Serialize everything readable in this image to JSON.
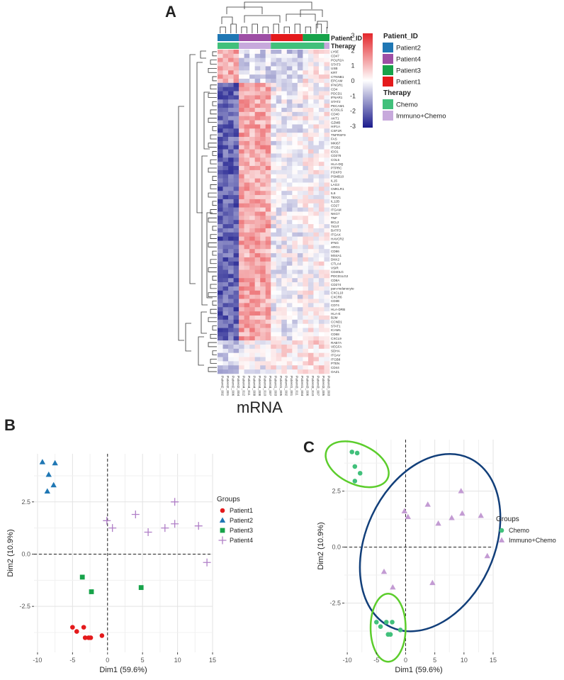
{
  "panels": {
    "a": "A",
    "b": "B",
    "c": "C"
  },
  "heatmap_caption": "mRNA",
  "heatmap_legend": {
    "scale_ticks": [
      "3",
      "2",
      "1",
      "0",
      "-1",
      "-2",
      "-3"
    ],
    "patient_title": "Patient_ID",
    "patients": [
      {
        "label": "Patient2",
        "color": "#1f77b4"
      },
      {
        "label": "Patient4",
        "color": "#9e4fa5"
      },
      {
        "label": "Patient3",
        "color": "#17a34a"
      },
      {
        "label": "Patient1",
        "color": "#e41a1c"
      }
    ],
    "therapy_title": "Therapy",
    "therapies": [
      {
        "label": "Chemo",
        "color": "#41c07b"
      },
      {
        "label": "Immuno+Chemo",
        "color": "#c7a9dc"
      }
    ]
  },
  "annotation_labels": {
    "patient": "Patient_ID",
    "therapy": "Therapy"
  },
  "chart_data": [
    {
      "type": "heatmap",
      "title": "",
      "colorscale": {
        "low": "#1a1a8c",
        "mid": "#ffffff",
        "high": "#e3262b",
        "range": [
          -3,
          3
        ]
      },
      "columns": [
        "Patient2_002",
        "Patient2_001",
        "Patient2_006",
        "Patient2_004",
        "Patient4_012",
        "Patient4_011",
        "Patient4_009",
        "Patient4_008",
        "Patient4_010",
        "Patient4_007",
        "Patient1_003",
        "Patient1_005",
        "Patient1_002",
        "Patient1_001",
        "Patient3_011",
        "Patient1_004",
        "Patient3_006",
        "Patient3_010",
        "Patient3_007",
        "Patient3_005",
        "Patient3_003"
      ],
      "column_patient_groups": [
        {
          "patient": "Patient2",
          "count": 4
        },
        {
          "patient": "Patient4",
          "count": 6
        },
        {
          "patient": "Patient1",
          "count": 6
        },
        {
          "patient": "Patient3",
          "count": 5
        }
      ],
      "column_therapy_groups": [
        {
          "therapy": "Chemo",
          "count": 4
        },
        {
          "therapy": "Immuno+Chemo",
          "count": 6
        },
        {
          "therapy": "Chemo",
          "count": 10
        },
        {
          "therapy": "Immuno+Chemo",
          "count": 1
        }
      ],
      "rows": [
        "LY6E",
        "CD47",
        "POLR2A",
        "STAT3",
        "USB",
        "KRT",
        "CTNNB1",
        "EPCAM",
        "IFNGR1",
        "CD4",
        "PDCD1",
        "IFNAR1",
        "STAT2",
        "PECAM1",
        "ICOSLG",
        "CD40",
        "AKT1",
        "GZMB",
        "HIF1A",
        "CSF1R",
        "TNFRSF9",
        "FAS",
        "MKI67",
        "ITGB2",
        "IDO1",
        "CD276",
        "COL5",
        "HLA-DQ",
        "PTPRC",
        "FOXP3",
        "PSMB10",
        "IL15",
        "LAG3",
        "CMKLR1",
        "IL6",
        "TBX21",
        "IL12B",
        "CD27",
        "ITGAM",
        "NKG7",
        "TNF",
        "BCL2",
        "TIGIT",
        "BATF3",
        "ITGAX",
        "HAVCR2",
        "IFNG",
        "ARG1",
        "CD86",
        "MS4A1",
        "DKK2",
        "CTLA4",
        "VSIR",
        "CD40LG",
        "PDCD1LG2",
        "CD8A",
        "CD274",
        "pan-melanocyte",
        "CXCL10",
        "CXCR6",
        "CD3E",
        "CD74",
        "HLA-DRB",
        "HLA-E",
        "B2M",
        "CCND1",
        "STAT1",
        "ICAM1",
        "CD68",
        "CXCL9",
        "RAB7A",
        "VEGFA",
        "SDHA",
        "ITGAV",
        "ITGB8",
        "PTEN",
        "CD44",
        "OAZ1"
      ]
    },
    {
      "type": "scatter",
      "title": "",
      "xlabel": "Dim1 (59.6%)",
      "ylabel": "Dim2 (10.9%)",
      "xlim": [
        -10.5,
        15
      ],
      "ylim": [
        -4.7,
        4.8
      ],
      "x_ticks": [
        -10,
        -5,
        0,
        5,
        10,
        15
      ],
      "y_ticks": [
        2.5,
        0.0,
        -2.5
      ],
      "y_tick_labels": [
        "2.5",
        "0.0",
        "-2.5"
      ],
      "grid": true,
      "legend_title": "Groups",
      "legend_position": "right",
      "series": [
        {
          "name": "Patient1",
          "marker": "circle",
          "color": "#e41a1c",
          "points": [
            [
              -5.0,
              -3.5
            ],
            [
              -4.4,
              -3.7
            ],
            [
              -3.4,
              -3.5
            ],
            [
              -3.2,
              -4.0
            ],
            [
              -2.7,
              -4.0
            ],
            [
              -2.4,
              -4.0
            ],
            [
              -0.8,
              -3.9
            ]
          ]
        },
        {
          "name": "Patient2",
          "marker": "triangle",
          "color": "#1f77b4",
          "points": [
            [
              -9.3,
              4.4
            ],
            [
              -7.5,
              4.35
            ],
            [
              -8.4,
              3.8
            ],
            [
              -7.7,
              3.3
            ],
            [
              -8.6,
              3.0
            ]
          ]
        },
        {
          "name": "Patient3",
          "marker": "square",
          "color": "#17a34a",
          "points": [
            [
              -3.6,
              -1.1
            ],
            [
              -2.3,
              -1.8
            ],
            [
              4.8,
              -1.6
            ]
          ]
        },
        {
          "name": "Patient4",
          "marker": "plus",
          "color": "#b07fc7",
          "points": [
            [
              -0.1,
              1.6
            ],
            [
              0.7,
              1.25
            ],
            [
              4.0,
              1.9
            ],
            [
              5.8,
              1.05
            ],
            [
              8.2,
              1.25
            ],
            [
              9.6,
              2.5
            ],
            [
              9.6,
              1.45
            ],
            [
              13.0,
              1.35
            ],
            [
              14.2,
              -0.4
            ]
          ]
        }
      ]
    },
    {
      "type": "scatter",
      "title": "",
      "xlabel": "Dim1 (59.6%)",
      "ylabel": "Dim2 (10.9%)",
      "xlim": [
        -10.5,
        15
      ],
      "ylim": [
        -4.7,
        4.8
      ],
      "x_ticks": [
        -10,
        -5,
        0,
        5,
        10,
        15
      ],
      "y_ticks": [
        2.5,
        0.0,
        -2.5
      ],
      "y_tick_labels": [
        "2.5",
        "0.0",
        "-2.5"
      ],
      "grid": true,
      "legend_title": "Groups",
      "legend_position": "right",
      "series": [
        {
          "name": "Chemo",
          "marker": "circle",
          "color": "#41c07b",
          "points": [
            [
              -9.2,
              4.25
            ],
            [
              -8.3,
              4.2
            ],
            [
              -8.7,
              3.6
            ],
            [
              -7.8,
              3.3
            ],
            [
              -8.7,
              2.95
            ],
            [
              -5.0,
              -3.35
            ],
            [
              -4.3,
              -3.55
            ],
            [
              -3.3,
              -3.35
            ],
            [
              -3.0,
              -3.9
            ],
            [
              -2.6,
              -3.9
            ],
            [
              -2.3,
              -3.35
            ],
            [
              -0.9,
              -3.7
            ]
          ]
        },
        {
          "name": "Immuno+Chemo",
          "marker": "triangle",
          "color": "#c39bd3",
          "points": [
            [
              -0.2,
              1.6
            ],
            [
              0.4,
              1.35
            ],
            [
              3.8,
              1.9
            ],
            [
              5.6,
              1.05
            ],
            [
              7.9,
              1.3
            ],
            [
              9.5,
              2.5
            ],
            [
              9.7,
              1.5
            ],
            [
              12.9,
              1.4
            ],
            [
              14.0,
              -0.4
            ],
            [
              -3.7,
              -1.1
            ],
            [
              -2.2,
              -1.8
            ],
            [
              4.6,
              -1.6
            ]
          ]
        }
      ],
      "ellipses": [
        {
          "group": "Chemo",
          "color": "#5ccd2c",
          "cx": -8.3,
          "cy": 3.7,
          "rx": 3.4,
          "ry": 1.5,
          "angle_deg": -65
        },
        {
          "group": "Immuno+Chemo",
          "color": "#123f7a",
          "cx": 4.2,
          "cy": 0.2,
          "rx": 11.0,
          "ry": 2.6,
          "angle_deg": 25
        },
        {
          "group": "Chemo",
          "color": "#5ccd2c",
          "cx": -3.0,
          "cy": -3.6,
          "rx": 3.0,
          "ry": 0.95,
          "angle_deg": 0
        }
      ]
    }
  ]
}
